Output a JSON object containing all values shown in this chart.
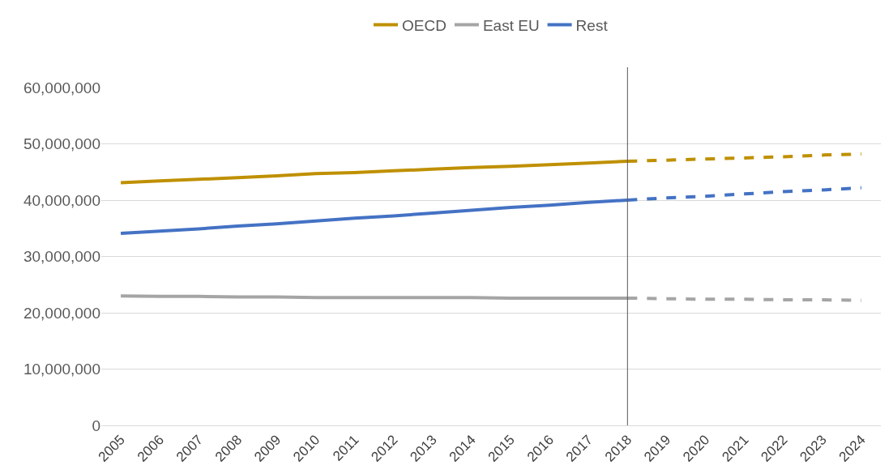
{
  "chart_data": {
    "type": "line",
    "categories": [
      "2005",
      "2006",
      "2007",
      "2008",
      "2009",
      "2010",
      "2011",
      "2012",
      "2013",
      "2014",
      "2015",
      "2016",
      "2017",
      "2018",
      "2019",
      "2020",
      "2021",
      "2022",
      "2023",
      "2024"
    ],
    "series": [
      {
        "name": "OECD",
        "color": "#bf9000",
        "line_style": "solid",
        "values": [
          43100000,
          43400000,
          43700000,
          44000000,
          44300000,
          44700000,
          44900000,
          45200000,
          45500000,
          45800000,
          46000000,
          46300000,
          46600000,
          46900000,
          null,
          null,
          null,
          null,
          null,
          null
        ]
      },
      {
        "name": "East EU",
        "color": "#a5a5a5",
        "line_style": "solid",
        "values": [
          23000000,
          22900000,
          22900000,
          22800000,
          22800000,
          22700000,
          22700000,
          22700000,
          22700000,
          22700000,
          22600000,
          22600000,
          22600000,
          22600000,
          null,
          null,
          null,
          null,
          null,
          null
        ]
      },
      {
        "name": "Rest",
        "color": "#4472c4",
        "line_style": "solid",
        "values": [
          34100000,
          34500000,
          34900000,
          35400000,
          35800000,
          36300000,
          36800000,
          37200000,
          37700000,
          38200000,
          38700000,
          39100000,
          39600000,
          40000000,
          null,
          null,
          null,
          null,
          null,
          null
        ]
      },
      {
        "color": "#bf9000",
        "line_style": "dashed",
        "values": [
          null,
          null,
          null,
          null,
          null,
          null,
          null,
          null,
          null,
          null,
          null,
          null,
          null,
          46900000,
          47100000,
          47300000,
          47500000,
          47700000,
          48000000,
          48200000
        ]
      },
      {
        "color": "#a5a5a5",
        "line_style": "dashed",
        "values": [
          null,
          null,
          null,
          null,
          null,
          null,
          null,
          null,
          null,
          null,
          null,
          null,
          null,
          22600000,
          22500000,
          22400000,
          22400000,
          22300000,
          22300000,
          22200000
        ]
      },
      {
        "color": "#4472c4",
        "line_style": "dashed",
        "values": [
          null,
          null,
          null,
          null,
          null,
          null,
          null,
          null,
          null,
          null,
          null,
          null,
          null,
          40000000,
          40400000,
          40700000,
          41100000,
          41500000,
          41800000,
          42200000
        ]
      }
    ],
    "ylim": [
      0,
      60000000
    ],
    "yticks": [
      {
        "value": 0,
        "label": "0"
      },
      {
        "value": 10000000,
        "label": "10,000,000"
      },
      {
        "value": 20000000,
        "label": "20,000,000"
      },
      {
        "value": 30000000,
        "label": "30,000,000"
      },
      {
        "value": 40000000,
        "label": "40,000,000"
      },
      {
        "value": 50000000,
        "label": "50,000,000"
      },
      {
        "value": 60000000,
        "label": "60,000,000"
      }
    ],
    "ref_lines": [
      {
        "axis": "x",
        "value": "2018",
        "color": "#595959"
      }
    ],
    "grid": "y",
    "legend": "top",
    "marker": "none"
  }
}
